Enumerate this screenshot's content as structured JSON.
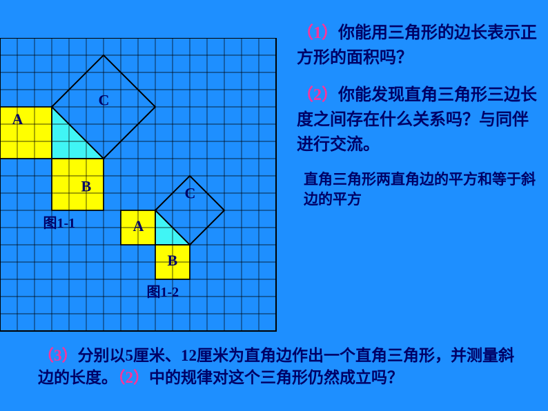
{
  "grid": {
    "cell": 25,
    "cols": 16,
    "rows": 17,
    "line_color": "#000000",
    "bg_color": "#1e8fff",
    "square_fill": "#ffff00",
    "triangle_fill": "#40f5f5",
    "rotated_fill": "#1e8fff"
  },
  "figure1": {
    "labels": {
      "A": "A",
      "B": "B",
      "C": "C"
    },
    "caption": "图1-1"
  },
  "figure2": {
    "labels": {
      "A": "A",
      "B": "B",
      "C": "C"
    },
    "caption": "图1-2"
  },
  "questions": {
    "q1_num": "（1）",
    "q1": "你能用三角形的边长表示正方形的面积吗？",
    "q2_num": "（2）",
    "q2": "你能发现直角三角形三边长度之间存在什么关系吗？与同伴进行交流。",
    "answer": "直角三角形两直角边的平方和等于斜边的平方",
    "q3_num": "（3）",
    "q3a": "分别以5厘米、12厘米为直角边作出一个直角三角形，并测量斜边的长度。",
    "q3_paren2": "（2）",
    "q3b": "中的规律对这个三角形仍然成立吗？"
  }
}
